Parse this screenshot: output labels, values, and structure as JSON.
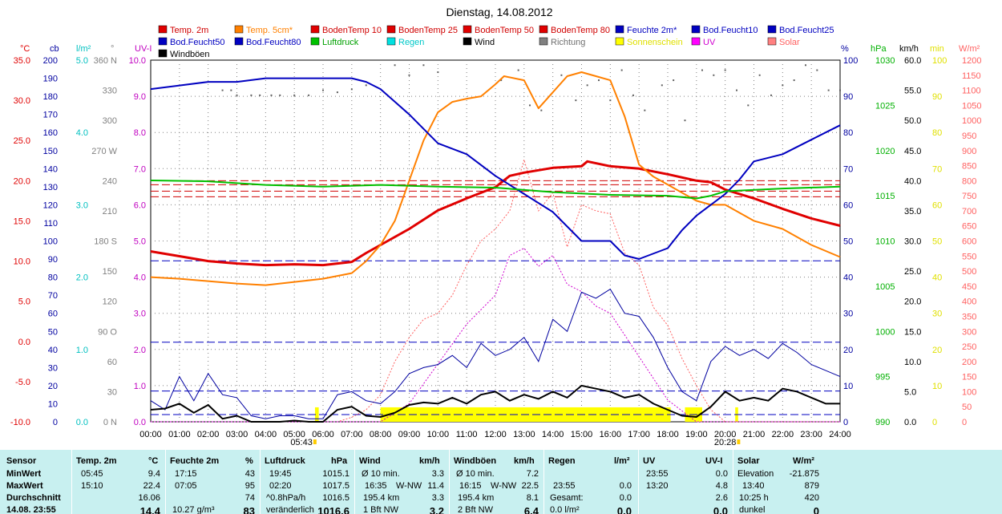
{
  "chart_data": {
    "type": "line",
    "title": "Dienstag, 14.08.2012",
    "x_ticks": [
      "00:00",
      "01:00",
      "02:00",
      "03:00",
      "04:00",
      "05:00",
      "06:00",
      "07:00",
      "08:00",
      "09:00",
      "10:00",
      "11:00",
      "12:00",
      "13:00",
      "14:00",
      "15:00",
      "16:00",
      "17:00",
      "18:00",
      "19:00",
      "20:00",
      "21:00",
      "22:00",
      "23:00",
      "24:00"
    ],
    "sunrise": "05:43",
    "sunset": "20:28",
    "legend": [
      {
        "name": "Temp. 2m",
        "color": "#e00000"
      },
      {
        "name": "Temp. 5cm*",
        "color": "#ff8000"
      },
      {
        "name": "BodenTemp 10",
        "color": "#e00000"
      },
      {
        "name": "BodenTemp 25",
        "color": "#e00000"
      },
      {
        "name": "BodenTemp 50",
        "color": "#e00000"
      },
      {
        "name": "BodenTemp 80",
        "color": "#e00000"
      },
      {
        "name": "Feuchte 2m*",
        "color": "#0000c0"
      },
      {
        "name": "Bod.Feucht10",
        "color": "#0000c0"
      },
      {
        "name": "Bod.Feucht25",
        "color": "#0000c0"
      },
      {
        "name": "Bod.Feucht50",
        "color": "#0000c0"
      },
      {
        "name": "Bod.Feucht80",
        "color": "#0000c0"
      },
      {
        "name": "Luftdruck",
        "color": "#00c000"
      },
      {
        "name": "Regen",
        "color": "#00e0e0"
      },
      {
        "name": "Wind",
        "color": "#000000"
      },
      {
        "name": "Richtung",
        "color": "#808080"
      },
      {
        "name": "Sonnenschein",
        "color": "#ffff00"
      },
      {
        "name": "UV",
        "color": "#ff00ff"
      },
      {
        "name": "Solar",
        "color": "#ff8080"
      },
      {
        "name": "Windböen",
        "color": "#000000"
      }
    ],
    "axes_left": [
      {
        "unit": "°C",
        "color": "#e00000",
        "labels": [
          "35.0",
          "30.0",
          "25.0",
          "20.0",
          "15.0",
          "10.0",
          "5.0",
          "0.0",
          "-5.0",
          "-10.0"
        ]
      },
      {
        "unit": "cb",
        "color": "#0000a0",
        "labels": [
          "200",
          "190",
          "180",
          "170",
          "160",
          "150",
          "140",
          "130",
          "120",
          "110",
          "100",
          "90",
          "80",
          "70",
          "60",
          "50",
          "40",
          "30",
          "20",
          "10",
          "0"
        ]
      },
      {
        "unit": "l/m²",
        "color": "#00c0c0",
        "labels": [
          "5.0",
          "4.0",
          "3.0",
          "2.0",
          "1.0",
          "0.0"
        ]
      },
      {
        "unit": "°",
        "color": "#808080",
        "labels": [
          "360 N",
          "330",
          "300",
          "270 W",
          "240",
          "210",
          "180 S",
          "150",
          "120",
          "90 O",
          "60",
          "30",
          "0 N"
        ]
      },
      {
        "unit": "UV-I",
        "color": "#c000c0",
        "labels": [
          "10.0",
          "9.0",
          "8.0",
          "7.0",
          "6.0",
          "5.0",
          "4.0",
          "3.0",
          "2.0",
          "1.0",
          "0.0"
        ]
      }
    ],
    "axes_right": [
      {
        "unit": "%",
        "color": "#0000a0",
        "labels": [
          "100",
          "90",
          "80",
          "70",
          "60",
          "50",
          "40",
          "30",
          "20",
          "10",
          "0"
        ]
      },
      {
        "unit": "hPa",
        "color": "#00b000",
        "labels": [
          "1030",
          "1025",
          "1020",
          "1015",
          "1010",
          "1005",
          "1000",
          "995",
          "990"
        ]
      },
      {
        "unit": "km/h",
        "color": "#000000",
        "labels": [
          "60.0",
          "55.0",
          "50.0",
          "45.0",
          "40.0",
          "35.0",
          "30.0",
          "25.0",
          "20.0",
          "15.0",
          "10.0",
          "5.0",
          "0.0"
        ]
      },
      {
        "unit": "min",
        "color": "#e0e000",
        "labels": [
          "100",
          "90",
          "80",
          "70",
          "60",
          "50",
          "40",
          "30",
          "20",
          "10",
          "0"
        ]
      },
      {
        "unit": "W/m²",
        "color": "#ff6060",
        "labels": [
          "1200",
          "1150",
          "1100",
          "1050",
          "1000",
          "950",
          "900",
          "850",
          "800",
          "750",
          "700",
          "650",
          "600",
          "550",
          "500",
          "450",
          "400",
          "350",
          "300",
          "250",
          "200",
          "150",
          "100",
          "50",
          "0"
        ]
      }
    ],
    "series": [
      {
        "name": "Temp. 2m",
        "unit": "°C",
        "color": "#e00000",
        "hours": [
          0,
          1,
          2,
          3,
          4,
          5,
          6,
          7,
          7.5,
          8,
          9,
          10,
          11,
          12,
          12.5,
          13,
          14,
          15,
          15.2,
          16,
          17,
          18,
          19,
          19.5,
          20,
          21,
          22,
          23,
          24
        ],
        "values": [
          11.2,
          10.6,
          10.0,
          9.7,
          9.5,
          9.6,
          9.5,
          9.9,
          11.0,
          12.0,
          14.0,
          16.3,
          17.8,
          19.2,
          20.6,
          21.0,
          21.6,
          21.8,
          22.4,
          21.8,
          21.5,
          20.8,
          20.0,
          19.8,
          18.9,
          17.8,
          16.5,
          15.3,
          14.4
        ]
      },
      {
        "name": "Temp. 5cm*",
        "unit": "°C",
        "color": "#ff8000",
        "hours": [
          0,
          1,
          2,
          3,
          4,
          5,
          6,
          7,
          7.5,
          8,
          8.5,
          9,
          9.5,
          10,
          10.5,
          11,
          11.5,
          12,
          12.3,
          13,
          13.5,
          14,
          14.5,
          15,
          15.5,
          16,
          16.5,
          17,
          17.5,
          18,
          18.5,
          19,
          19.5,
          20,
          21,
          22,
          23,
          24
        ],
        "values": [
          8.0,
          7.8,
          7.5,
          7.2,
          7.0,
          7.4,
          7.8,
          8.5,
          10.0,
          12.0,
          15.0,
          20.0,
          25.0,
          28.5,
          29.8,
          30.2,
          30.5,
          32.0,
          33.0,
          32.5,
          29.0,
          31.0,
          33.0,
          33.5,
          33.0,
          32.5,
          28.0,
          22.0,
          20.5,
          19.5,
          18.5,
          17.5,
          17.0,
          17.0,
          15.0,
          14.0,
          12.0,
          10.5
        ]
      },
      {
        "name": "Feuchte 2m*",
        "unit": "%",
        "color": "#0000c0",
        "hours": [
          0,
          1,
          2,
          3,
          4,
          5,
          6,
          7,
          7.5,
          8,
          9,
          10,
          11,
          12,
          13,
          14,
          14.5,
          15,
          16,
          16.5,
          17,
          18,
          18.5,
          19,
          20,
          20.5,
          21,
          22,
          23,
          24
        ],
        "values": [
          92,
          93,
          94,
          94,
          95,
          95,
          95,
          95,
          94,
          92,
          85,
          77,
          74,
          68,
          63,
          58,
          54,
          50,
          50,
          46,
          45,
          48,
          53,
          57,
          63,
          67,
          72,
          74,
          78,
          82
        ]
      },
      {
        "name": "Luftdruck",
        "unit": "hPa",
        "color": "#00c000",
        "hours": [
          0,
          2,
          4,
          6,
          8,
          10,
          12,
          14,
          16,
          18,
          19,
          19.5,
          20,
          22,
          24
        ],
        "values": [
          1016.7,
          1016.6,
          1016.2,
          1016.0,
          1016.2,
          1016.0,
          1015.9,
          1015.4,
          1015.1,
          1015.0,
          1014.7,
          1015.0,
          1015.5,
          1015.8,
          1016.0
        ]
      }
    ],
    "solar_wm2": {
      "hours": [
        0,
        6.5,
        7,
        7.5,
        8,
        8.5,
        9,
        9.5,
        10,
        10.5,
        11,
        11.5,
        12,
        12.5,
        13,
        13.5,
        14,
        14.5,
        15,
        15.5,
        16,
        16.5,
        17,
        17.5,
        18,
        18.5,
        19,
        19.5,
        20,
        24
      ],
      "values": [
        0,
        0,
        15,
        40,
        90,
        200,
        280,
        340,
        360,
        420,
        520,
        600,
        640,
        700,
        870,
        700,
        760,
        580,
        720,
        700,
        690,
        560,
        520,
        380,
        320,
        210,
        120,
        40,
        0,
        0
      ]
    },
    "uv_index": {
      "hours": [
        0,
        8,
        9,
        10,
        11,
        12,
        12.5,
        13,
        13.5,
        14,
        14.5,
        15,
        15.5,
        16,
        16.5,
        17,
        17.5,
        18,
        19,
        24
      ],
      "values": [
        0,
        0,
        0.5,
        1.6,
        2.7,
        3.5,
        4.6,
        4.8,
        4.3,
        4.6,
        3.8,
        3.6,
        3.2,
        3.0,
        2.4,
        1.8,
        1.2,
        0.6,
        0,
        0
      ]
    },
    "wind_kmh": {
      "hours": [
        0,
        0.5,
        1,
        1.5,
        2,
        2.5,
        3,
        3.5,
        4,
        4.5,
        5,
        5.5,
        6,
        6.5,
        7,
        7.5,
        8,
        8.5,
        9,
        9.5,
        10,
        10.5,
        11,
        11.5,
        12,
        12.5,
        13,
        13.5,
        14,
        14.5,
        15,
        15.5,
        16,
        16.5,
        17,
        17.5,
        18,
        18.5,
        19,
        19.5,
        20,
        20.5,
        21,
        21.5,
        22,
        22.5,
        23,
        23.5,
        24
      ],
      "values": [
        2.0,
        2.2,
        3.0,
        1.5,
        2.8,
        0.5,
        1.0,
        0,
        0,
        0,
        0.2,
        0,
        0,
        2.0,
        2.5,
        1.0,
        0.8,
        1.5,
        2.8,
        3.2,
        3.0,
        4.0,
        3.0,
        4.5,
        5.0,
        3.5,
        4.5,
        3.8,
        5.0,
        4.0,
        6.0,
        5.5,
        5.0,
        4.0,
        4.5,
        3.0,
        2.0,
        1.0,
        0.8,
        2.5,
        5.0,
        3.5,
        4.0,
        3.5,
        5.5,
        5.0,
        4.0,
        3.0,
        3.0
      ]
    },
    "gust_kmh": {
      "hours": [
        0,
        0.5,
        1,
        1.5,
        2,
        2.5,
        3,
        3.5,
        4,
        4.5,
        5,
        5.5,
        6,
        6.5,
        7,
        7.5,
        8,
        8.5,
        9,
        9.5,
        10,
        10.5,
        11,
        11.5,
        12,
        12.5,
        13,
        13.5,
        14,
        14.5,
        15,
        15.5,
        16,
        16.5,
        17,
        17.5,
        18,
        18.5,
        19,
        19.5,
        20,
        20.5,
        21,
        21.5,
        22,
        22.5,
        23,
        23.5,
        24
      ],
      "values": [
        3.5,
        2.0,
        7.5,
        3.5,
        8.0,
        4.5,
        4.0,
        1.0,
        0.5,
        1.0,
        1.0,
        0.5,
        0.5,
        4.5,
        5.0,
        3.5,
        3.0,
        5.0,
        8.0,
        9.0,
        9.5,
        11.0,
        9.0,
        13.0,
        11.0,
        12.0,
        14.0,
        10.0,
        17.0,
        15.0,
        21.5,
        20.5,
        22.0,
        18.0,
        17.5,
        14.0,
        9.0,
        5.0,
        3.5,
        10.0,
        12.5,
        11.0,
        12.0,
        10.5,
        13.0,
        11.5,
        9.5,
        8.5,
        7.5
      ]
    },
    "sunshine_periods": [
      [
        5.72,
        5.85
      ],
      [
        8.0,
        18.1
      ],
      [
        18.6,
        19.2
      ],
      [
        20.35,
        20.45
      ]
    ],
    "direction_points": [
      [
        2.5,
        330
      ],
      [
        2.8,
        330
      ],
      [
        3.0,
        325
      ],
      [
        3.5,
        325
      ],
      [
        3.8,
        325
      ],
      [
        4.2,
        325
      ],
      [
        4.5,
        325
      ],
      [
        5.0,
        325
      ],
      [
        5.5,
        325
      ],
      [
        6.0,
        330
      ],
      [
        6.5,
        328
      ],
      [
        7.0,
        331
      ],
      [
        7.5,
        335
      ],
      [
        8.5,
        355
      ],
      [
        9.0,
        345
      ],
      [
        9.5,
        355
      ],
      [
        10.0,
        348
      ],
      [
        12.2,
        340
      ],
      [
        12.8,
        350
      ],
      [
        13.2,
        315
      ],
      [
        13.6,
        310
      ],
      [
        14.3,
        345
      ],
      [
        14.8,
        320
      ],
      [
        15.2,
        335
      ],
      [
        15.6,
        340
      ],
      [
        16.0,
        320
      ],
      [
        16.4,
        350
      ],
      [
        16.8,
        325
      ],
      [
        17.2,
        310
      ],
      [
        17.8,
        335
      ],
      [
        18.2,
        340
      ],
      [
        18.6,
        300
      ],
      [
        19.2,
        350
      ],
      [
        19.6,
        345
      ],
      [
        20.0,
        350
      ],
      [
        20.4,
        330
      ],
      [
        20.8,
        315
      ],
      [
        21.2,
        345
      ],
      [
        21.6,
        325
      ],
      [
        22.0,
        335
      ],
      [
        22.4,
        340
      ],
      [
        22.8,
        355
      ],
      [
        23.2,
        350
      ],
      [
        23.6,
        330
      ],
      [
        24.0,
        330
      ]
    ],
    "ref_lines_c": [
      20.0,
      19.5,
      18.7,
      18.0
    ],
    "ref_line_pct": [
      44.5,
      22.0,
      8.5,
      2.0
    ]
  },
  "stats": {
    "headers": {
      "sensor": "Sensor",
      "temp": "Temp. 2m",
      "temp_unit": "°C",
      "humid": "Feuchte 2m",
      "humid_unit": "%",
      "press": "Luftdruck",
      "press_unit": "hPa",
      "wind": "Wind",
      "wind_unit": "km/h",
      "gust": "Windböen",
      "gust_unit": "km/h",
      "rain": "Regen",
      "rain_unit": "l/m²",
      "uv": "UV",
      "uv_unit": "UV-I",
      "solar": "Solar",
      "solar_unit": "W/m²"
    },
    "rows": {
      "min": {
        "label": "MinWert",
        "temp_t": "05:45",
        "temp_v": "9.4",
        "humid_t": "17:15",
        "humid_v": "43",
        "press_t": "19:45",
        "press_v": "1015.1",
        "wind_l": "Ø 10 min.",
        "wind_v": "3.3",
        "gust_l": "Ø 10 min.",
        "gust_v": "7.2",
        "rain_l": "",
        "rain_v": "",
        "uv_t": "23:55",
        "uv_v": "0.0",
        "solar_l": "Elevation",
        "solar_v": "-21.875"
      },
      "max": {
        "label": "MaxWert",
        "temp_t": "15:10",
        "temp_v": "22.4",
        "humid_t": "07:05",
        "humid_v": "95",
        "press_t": "02:20",
        "press_v": "1017.5",
        "wind_l": "16:35",
        "wind_d": "W-NW",
        "wind_v": "11.4",
        "gust_l": "16:15",
        "gust_d": "W-NW",
        "gust_v": "22.5",
        "rain_l": "23:55",
        "rain_v": "0.0",
        "uv_t": "13:20",
        "uv_v": "4.8",
        "solar_l": "13:40",
        "solar_v": "879"
      },
      "avg": {
        "label": "Durchschnitt",
        "temp_v": "16.06",
        "humid_v": "74",
        "press_l": "^0.8hPa/h",
        "press_v": "1016.5",
        "wind_l": "195.4 km",
        "wind_v": "3.3",
        "gust_l": "195.4 km",
        "gust_v": "8.1",
        "rain_l": "Gesamt:",
        "rain_v": "0.0",
        "uv_v": "2.6",
        "solar_l": "10:25 h",
        "solar_v": "420"
      },
      "cur": {
        "label": "14.08. 23:55",
        "temp_v": "14.4",
        "humid_l": "10.27 g/m³",
        "humid_v": "83",
        "press_l": "veränderlich",
        "press_v": "1016.6",
        "wind_l": "1 Bft NW",
        "wind_v": "3.2",
        "gust_l": "2 Bft NW",
        "gust_v": "6.4",
        "rain_l": "0.0 l/m²",
        "rain_v": "0.0",
        "uv_v": "0.0",
        "solar_l": "dunkel",
        "solar_v": "0"
      }
    }
  }
}
